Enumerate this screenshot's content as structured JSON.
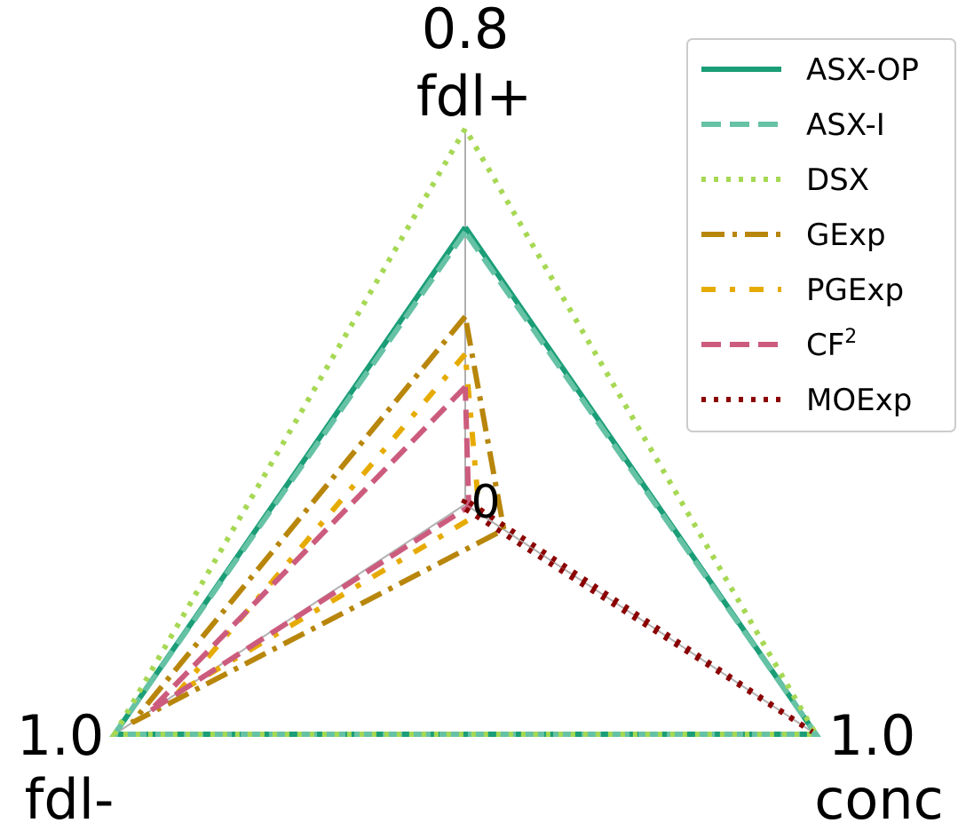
{
  "chart_data": {
    "type": "radar",
    "axes": [
      {
        "name": "fdl+",
        "max_label": "0.8"
      },
      {
        "name": "fdl-",
        "max_label": "1.0"
      },
      {
        "name": "conc",
        "max_label": "1.0"
      }
    ],
    "center_label": "0",
    "axis_max": [
      0.8,
      1.0,
      1.0
    ],
    "series": [
      {
        "name": "ASX-OP",
        "color": "#1b9e77",
        "dash": "solid",
        "values": [
          0.59,
          1.0,
          1.0
        ]
      },
      {
        "name": "ASX-I",
        "color": "#66c2a5",
        "dash": "dashed",
        "values": [
          0.58,
          1.0,
          1.0
        ]
      },
      {
        "name": "DSX",
        "color": "#a6d854",
        "dash": "dotted",
        "values": [
          0.8,
          1.0,
          1.0
        ]
      },
      {
        "name": "GExp",
        "color": "#b8860b",
        "dash": "dashdot",
        "values": [
          0.4,
          0.95,
          0.11
        ]
      },
      {
        "name": "PGExp",
        "color": "#e6ab02",
        "dash": "dashdot-loose",
        "values": [
          0.32,
          0.82,
          0.04
        ]
      },
      {
        "name": "CF",
        "sup": "2",
        "color": "#cc5c7e",
        "dash": "dashed",
        "values": [
          0.25,
          0.9,
          0.01
        ]
      },
      {
        "name": "MOExp",
        "color": "#8b0000",
        "dash": "dotted",
        "values": [
          0.01,
          0.01,
          0.99
        ]
      }
    ],
    "legend_position": "top-right",
    "grid": true
  }
}
